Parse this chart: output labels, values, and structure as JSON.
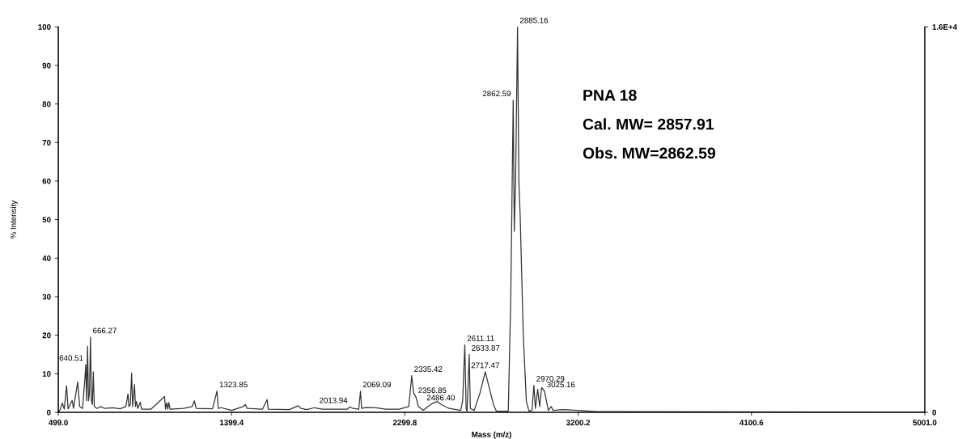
{
  "chart_data": {
    "type": "line",
    "xlabel": "Mass (m/z)",
    "ylabel": "% Intensity",
    "xlim": [
      499.0,
      5001.0
    ],
    "xticks": [
      {
        "value": 499.0,
        "label": "499.0"
      },
      {
        "value": 1399.4,
        "label": "1399.4"
      },
      {
        "value": 2299.8,
        "label": "2299.8"
      },
      {
        "value": 3200.2,
        "label": "3200.2"
      },
      {
        "value": 4100.6,
        "label": "4100.6"
      },
      {
        "value": 5001.0,
        "label": "5001.0"
      }
    ],
    "ylim": [
      0,
      100
    ],
    "yticks": [
      0,
      10,
      20,
      30,
      40,
      50,
      60,
      70,
      80,
      90,
      100
    ],
    "y2lim": [
      0,
      16000
    ],
    "y2ticks": [
      0,
      {
        "value": 16000,
        "label": "1.6E+4"
      }
    ],
    "grid": false,
    "legend": false,
    "marker": "none",
    "line_style": "solid",
    "series": [
      {
        "color": "#333333",
        "x": [
          499,
          510,
          520,
          530,
          542,
          550,
          571,
          578,
          600,
          610,
          625,
          636,
          642,
          646,
          651,
          656,
          661,
          666.27,
          671,
          676,
          681,
          686,
          700,
          720,
          740,
          780,
          820,
          850,
          861,
          866,
          873,
          880,
          885,
          895,
          900,
          905,
          912,
          925,
          932,
          980,
          1051,
          1056,
          1062,
          1068,
          1073,
          1080,
          1150,
          1195,
          1206,
          1215,
          1300,
          1323.85,
          1330,
          1345,
          1400,
          1460,
          1471,
          1480,
          1560,
          1584,
          1590,
          1700,
          1745,
          1760,
          1790,
          1830,
          1870,
          2000,
          2013.94,
          2030,
          2060,
          2069.09,
          2075,
          2100,
          2150,
          2200,
          2270,
          2320,
          2335.42,
          2345,
          2356.85,
          2370,
          2395,
          2420,
          2450,
          2468,
          2486.4,
          2530,
          2590,
          2600,
          2611.11,
          2618,
          2623,
          2633.87,
          2640,
          2660,
          2690,
          2717.47,
          2740,
          2760,
          2775,
          2837,
          2850,
          2862.59,
          2868,
          2875,
          2885.16,
          2892,
          2899,
          2915,
          2931,
          2945,
          2960,
          2970.29,
          2978,
          2990,
          3000,
          3010,
          3025.16,
          3045,
          3060,
          3070,
          3120,
          3200,
          3300,
          5001
        ],
        "values": [
          0,
          0.8,
          2.4,
          0.8,
          6.9,
          0.9,
          3.1,
          1,
          7.9,
          1.5,
          1,
          8,
          12.4,
          3,
          17.1,
          3,
          5,
          19.5,
          3,
          2,
          10.5,
          1.5,
          1,
          1.5,
          1,
          1.2,
          0.9,
          1.5,
          4.8,
          1.5,
          2,
          10.2,
          1.5,
          7.2,
          1.5,
          2.8,
          1,
          2.6,
          0.8,
          0.8,
          4.1,
          0.8,
          2.5,
          0.8,
          2.6,
          0.8,
          1,
          1.5,
          3,
          1,
          0.9,
          5.5,
          1,
          1.2,
          0.5,
          1.5,
          2,
          1,
          0.8,
          3.3,
          0.8,
          0.7,
          1.7,
          1,
          0.7,
          1.2,
          0.8,
          0.8,
          1.4,
          1,
          0.8,
          5.5,
          1,
          1.3,
          1.2,
          0.8,
          0.8,
          1.5,
          9.5,
          5,
          4,
          1.5,
          0.5,
          1.5,
          2.5,
          2.8,
          2.1,
          1,
          0.5,
          3,
          17.5,
          1,
          0.3,
          15,
          1,
          0.5,
          5,
          10.5,
          6,
          2,
          0.3,
          0.3,
          30,
          81,
          47,
          60,
          100,
          60,
          50.7,
          20,
          2.8,
          0.3,
          0.5,
          7,
          1,
          6,
          1.5,
          6.4,
          5.5,
          0.5,
          1.5,
          0.5,
          0.7,
          0.5,
          0.2,
          0
        ]
      }
    ],
    "annotations": [
      {
        "text": "640.51",
        "x": 640.51,
        "y": 12.4
      },
      {
        "text": "666.27",
        "x": 666.27,
        "y": 19.5
      },
      {
        "text": "1323.85",
        "x": 1323.85,
        "y": 5.5
      },
      {
        "text": "2013.94",
        "x": 2013.94,
        "y": 1.4
      },
      {
        "text": "2069.09",
        "x": 2069.09,
        "y": 5.5
      },
      {
        "text": "2335.42",
        "x": 2335.42,
        "y": 9.5
      },
      {
        "text": "2356.85",
        "x": 2356.85,
        "y": 4
      },
      {
        "text": "2486.40",
        "x": 2486.4,
        "y": 2.1
      },
      {
        "text": "2611.11",
        "x": 2611.11,
        "y": 17.5
      },
      {
        "text": "2633.87",
        "x": 2633.87,
        "y": 15
      },
      {
        "text": "2717.47",
        "x": 2717.47,
        "y": 10.5
      },
      {
        "text": "2862.59",
        "x": 2862.59,
        "y": 81
      },
      {
        "text": "2885.16",
        "x": 2885.16,
        "y": 100
      },
      {
        "text": "2970.29",
        "x": 2970.29,
        "y": 7
      },
      {
        "text": "3025.16",
        "x": 3025.16,
        "y": 5.5
      },
      "PNA 18",
      "Cal. MW= 2857.91",
      "Obs. MW=2862.59"
    ]
  }
}
